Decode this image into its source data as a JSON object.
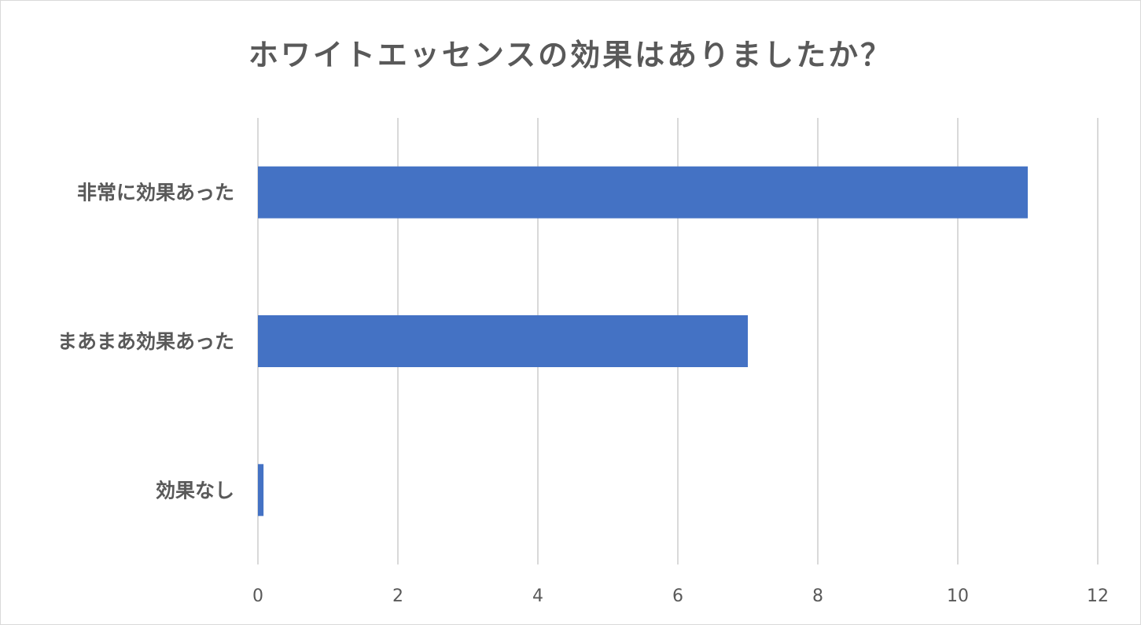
{
  "chart_data": {
    "type": "bar",
    "orientation": "horizontal",
    "title": "ホワイトエッセンスの効果はありましたか？",
    "categories": [
      "非常に効果あった",
      "まあまあ効果あった",
      "効果なし"
    ],
    "series": [
      {
        "values": [
          11,
          7,
          0.08
        ]
      }
    ],
    "xlabel": "",
    "ylabel": "",
    "xlim": [
      0,
      12
    ],
    "xticks": [
      0,
      2,
      4,
      6,
      8,
      10,
      12
    ],
    "grid": true,
    "legend": "none",
    "colors": {
      "bar": "#4472c4",
      "grid": "#d9d9d9",
      "text": "#595959"
    }
  }
}
